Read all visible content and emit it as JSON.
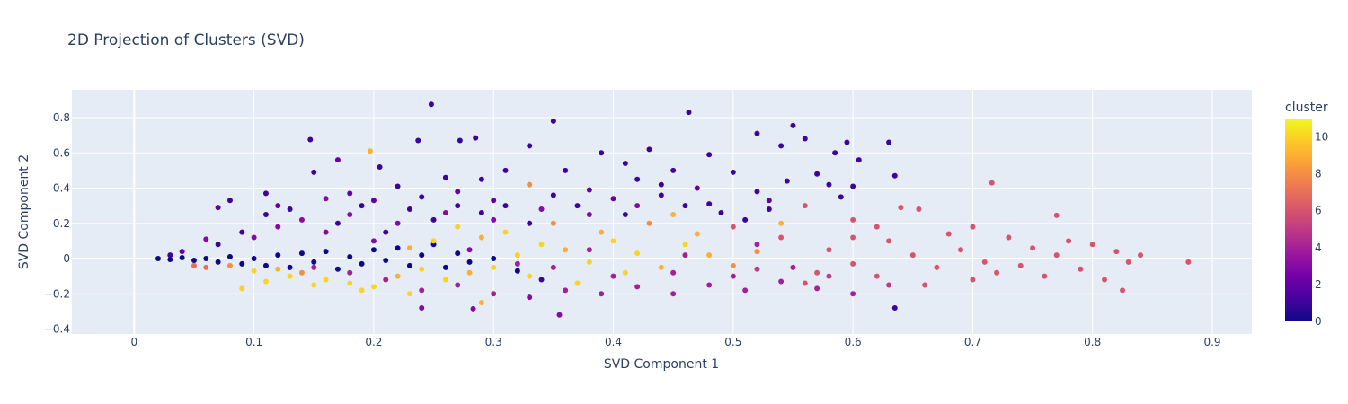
{
  "chart_data": {
    "type": "scatter",
    "title": "2D Projection of Clusters (SVD)",
    "xlabel": "SVD Component 1",
    "ylabel": "SVD Component 2",
    "xlim": [
      -0.052,
      0.933
    ],
    "ylim": [
      -0.428,
      0.958
    ],
    "xticks": [
      "0",
      "0.1",
      "0.2",
      "0.3",
      "0.4",
      "0.5",
      "0.6",
      "0.7",
      "0.8",
      "0.9"
    ],
    "xtick_values": [
      0,
      0.1,
      0.2,
      0.3,
      0.4,
      0.5,
      0.6,
      0.7,
      0.8,
      0.9
    ],
    "yticks": [
      "−0.4",
      "−0.2",
      "0",
      "0.2",
      "0.4",
      "0.6",
      "0.8"
    ],
    "ytick_values": [
      -0.4,
      -0.2,
      0,
      0.2,
      0.4,
      0.6,
      0.8
    ],
    "grid": true,
    "plot_bgcolor": "#e5ecf6",
    "colorbar": {
      "title": "cluster",
      "range": [
        0,
        11
      ],
      "ticks": [
        "0",
        "2",
        "4",
        "6",
        "8",
        "10"
      ],
      "tick_values": [
        0,
        2,
        4,
        6,
        8,
        10
      ],
      "colorscale": "Plasma",
      "colors": [
        "#0d0887",
        "#46039f",
        "#7201a8",
        "#9c179e",
        "#bd3786",
        "#d8576b",
        "#ed7953",
        "#fb9f3a",
        "#fdca26",
        "#f0f921"
      ]
    },
    "points_columns": [
      "svd1",
      "svd2",
      "cluster"
    ],
    "points": [
      [
        0.248,
        0.875,
        1
      ],
      [
        0.35,
        0.78,
        1
      ],
      [
        0.463,
        0.83,
        1
      ],
      [
        0.55,
        0.755,
        1
      ],
      [
        0.52,
        0.71,
        1
      ],
      [
        0.147,
        0.675,
        1
      ],
      [
        0.237,
        0.67,
        1
      ],
      [
        0.272,
        0.67,
        1
      ],
      [
        0.285,
        0.685,
        1
      ],
      [
        0.197,
        0.61,
        9
      ],
      [
        0.63,
        0.66,
        1
      ],
      [
        0.595,
        0.66,
        1
      ],
      [
        0.605,
        0.56,
        1
      ],
      [
        0.635,
        0.47,
        1
      ],
      [
        0.716,
        0.43,
        6
      ],
      [
        0.77,
        0.245,
        6
      ],
      [
        0.88,
        -0.02,
        6
      ],
      [
        0.825,
        -0.18,
        6
      ],
      [
        0.635,
        -0.28,
        1
      ],
      [
        0.355,
        -0.32,
        3
      ],
      [
        0.24,
        -0.28,
        3
      ],
      [
        0.283,
        -0.285,
        3
      ],
      [
        0.43,
        0.62,
        1
      ],
      [
        0.39,
        0.6,
        1
      ],
      [
        0.48,
        0.59,
        1
      ],
      [
        0.54,
        0.64,
        1
      ],
      [
        0.56,
        0.68,
        1
      ],
      [
        0.585,
        0.6,
        1
      ],
      [
        0.33,
        0.64,
        1
      ],
      [
        0.31,
        0.5,
        1
      ],
      [
        0.15,
        0.49,
        1
      ],
      [
        0.17,
        0.56,
        2
      ],
      [
        0.205,
        0.52,
        1
      ],
      [
        0.26,
        0.46,
        1
      ],
      [
        0.29,
        0.45,
        1
      ],
      [
        0.36,
        0.5,
        1
      ],
      [
        0.41,
        0.54,
        1
      ],
      [
        0.45,
        0.5,
        1
      ],
      [
        0.5,
        0.49,
        1
      ],
      [
        0.57,
        0.48,
        1
      ],
      [
        0.58,
        0.42,
        1
      ],
      [
        0.6,
        0.41,
        1
      ],
      [
        0.545,
        0.44,
        1
      ],
      [
        0.52,
        0.38,
        1
      ],
      [
        0.47,
        0.4,
        2
      ],
      [
        0.42,
        0.45,
        1
      ],
      [
        0.38,
        0.39,
        2
      ],
      [
        0.33,
        0.42,
        8
      ],
      [
        0.27,
        0.38,
        2
      ],
      [
        0.22,
        0.41,
        1
      ],
      [
        0.18,
        0.37,
        2
      ],
      [
        0.11,
        0.37,
        1
      ],
      [
        0.08,
        0.33,
        1
      ],
      [
        0.07,
        0.29,
        2
      ],
      [
        0.12,
        0.3,
        2
      ],
      [
        0.16,
        0.34,
        3
      ],
      [
        0.2,
        0.33,
        2
      ],
      [
        0.24,
        0.35,
        1
      ],
      [
        0.3,
        0.33,
        2
      ],
      [
        0.35,
        0.36,
        1
      ],
      [
        0.4,
        0.34,
        2
      ],
      [
        0.44,
        0.36,
        1
      ],
      [
        0.48,
        0.31,
        1
      ],
      [
        0.53,
        0.33,
        2
      ],
      [
        0.56,
        0.3,
        6
      ],
      [
        0.6,
        0.22,
        6
      ],
      [
        0.62,
        0.18,
        6
      ],
      [
        0.64,
        0.29,
        6
      ],
      [
        0.655,
        0.28,
        6
      ],
      [
        0.68,
        0.14,
        6
      ],
      [
        0.7,
        0.18,
        6
      ],
      [
        0.73,
        0.12,
        6
      ],
      [
        0.75,
        0.06,
        6
      ],
      [
        0.78,
        0.1,
        6
      ],
      [
        0.8,
        0.08,
        6
      ],
      [
        0.82,
        0.04,
        6
      ],
      [
        0.84,
        0.02,
        6
      ],
      [
        0.79,
        -0.06,
        6
      ],
      [
        0.76,
        -0.1,
        6
      ],
      [
        0.72,
        -0.08,
        6
      ],
      [
        0.7,
        -0.12,
        6
      ],
      [
        0.67,
        -0.05,
        6
      ],
      [
        0.65,
        0.02,
        6
      ],
      [
        0.62,
        -0.1,
        6
      ],
      [
        0.6,
        -0.03,
        6
      ],
      [
        0.58,
        0.05,
        6
      ],
      [
        0.56,
        -0.14,
        6
      ],
      [
        0.54,
        0.12,
        6
      ],
      [
        0.52,
        -0.06,
        5
      ],
      [
        0.5,
        0.18,
        6
      ],
      [
        0.83,
        -0.02,
        6
      ],
      [
        0.81,
        -0.12,
        6
      ],
      [
        0.74,
        -0.04,
        6
      ],
      [
        0.69,
        0.05,
        6
      ],
      [
        0.66,
        -0.15,
        6
      ],
      [
        0.63,
        0.1,
        6
      ],
      [
        0.71,
        -0.02,
        6
      ],
      [
        0.77,
        0.02,
        6
      ],
      [
        0.6,
        0.12,
        6
      ],
      [
        0.57,
        -0.08,
        6
      ],
      [
        0.02,
        0.0,
        0
      ],
      [
        0.03,
        -0.005,
        0
      ],
      [
        0.04,
        0.005,
        0
      ],
      [
        0.05,
        -0.01,
        0
      ],
      [
        0.06,
        0.0,
        0
      ],
      [
        0.07,
        -0.02,
        0
      ],
      [
        0.08,
        0.01,
        0
      ],
      [
        0.09,
        -0.03,
        0
      ],
      [
        0.1,
        0.0,
        0
      ],
      [
        0.11,
        -0.04,
        0
      ],
      [
        0.12,
        0.02,
        0
      ],
      [
        0.13,
        -0.05,
        0
      ],
      [
        0.14,
        0.03,
        0
      ],
      [
        0.15,
        -0.02,
        0
      ],
      [
        0.16,
        0.04,
        0
      ],
      [
        0.17,
        -0.06,
        0
      ],
      [
        0.18,
        0.01,
        0
      ],
      [
        0.19,
        -0.03,
        0
      ],
      [
        0.2,
        0.05,
        0
      ],
      [
        0.21,
        -0.01,
        0
      ],
      [
        0.22,
        0.06,
        0
      ],
      [
        0.23,
        -0.04,
        0
      ],
      [
        0.24,
        0.02,
        0
      ],
      [
        0.25,
        0.08,
        0
      ],
      [
        0.26,
        -0.05,
        0
      ],
      [
        0.27,
        0.03,
        0
      ],
      [
        0.28,
        -0.02,
        0
      ],
      [
        0.3,
        0.0,
        0
      ],
      [
        0.32,
        -0.07,
        0
      ],
      [
        0.34,
        -0.12,
        1
      ],
      [
        0.05,
        -0.04,
        7
      ],
      [
        0.06,
        -0.05,
        7
      ],
      [
        0.08,
        -0.04,
        8
      ],
      [
        0.1,
        -0.07,
        10
      ],
      [
        0.12,
        -0.06,
        9
      ],
      [
        0.13,
        -0.1,
        10
      ],
      [
        0.14,
        -0.08,
        8
      ],
      [
        0.16,
        -0.12,
        10
      ],
      [
        0.18,
        -0.14,
        10
      ],
      [
        0.2,
        -0.16,
        10
      ],
      [
        0.22,
        -0.1,
        9
      ],
      [
        0.24,
        -0.06,
        10
      ],
      [
        0.26,
        -0.12,
        10
      ],
      [
        0.28,
        -0.08,
        9
      ],
      [
        0.3,
        -0.05,
        10
      ],
      [
        0.32,
        0.02,
        10
      ],
      [
        0.34,
        0.08,
        10
      ],
      [
        0.36,
        0.05,
        9
      ],
      [
        0.38,
        -0.02,
        10
      ],
      [
        0.4,
        0.1,
        10
      ],
      [
        0.42,
        0.03,
        10
      ],
      [
        0.44,
        -0.05,
        9
      ],
      [
        0.46,
        0.08,
        10
      ],
      [
        0.48,
        0.02,
        9
      ],
      [
        0.5,
        -0.04,
        8
      ],
      [
        0.52,
        0.04,
        8
      ],
      [
        0.54,
        0.2,
        9
      ],
      [
        0.31,
        0.15,
        10
      ],
      [
        0.29,
        0.12,
        9
      ],
      [
        0.27,
        0.18,
        10
      ],
      [
        0.25,
        0.1,
        10
      ],
      [
        0.23,
        0.06,
        9
      ],
      [
        0.35,
        0.2,
        8
      ],
      [
        0.39,
        0.15,
        9
      ],
      [
        0.43,
        0.2,
        8
      ],
      [
        0.47,
        0.14,
        9
      ],
      [
        0.45,
        0.25,
        9
      ],
      [
        0.33,
        -0.1,
        10
      ],
      [
        0.37,
        -0.14,
        10
      ],
      [
        0.41,
        -0.08,
        10
      ],
      [
        0.15,
        -0.05,
        4
      ],
      [
        0.18,
        -0.08,
        4
      ],
      [
        0.21,
        -0.12,
        4
      ],
      [
        0.24,
        -0.18,
        4
      ],
      [
        0.27,
        -0.15,
        4
      ],
      [
        0.3,
        -0.2,
        4
      ],
      [
        0.33,
        -0.22,
        3
      ],
      [
        0.36,
        -0.18,
        4
      ],
      [
        0.39,
        -0.2,
        4
      ],
      [
        0.42,
        -0.16,
        4
      ],
      [
        0.45,
        -0.2,
        4
      ],
      [
        0.48,
        -0.15,
        4
      ],
      [
        0.51,
        -0.18,
        4
      ],
      [
        0.54,
        -0.13,
        4
      ],
      [
        0.57,
        -0.17,
        4
      ],
      [
        0.6,
        -0.2,
        4
      ],
      [
        0.63,
        -0.15,
        5
      ],
      [
        0.35,
        -0.05,
        4
      ],
      [
        0.4,
        -0.1,
        4
      ],
      [
        0.45,
        -0.08,
        4
      ],
      [
        0.5,
        -0.1,
        4
      ],
      [
        0.55,
        -0.05,
        4
      ],
      [
        0.58,
        -0.1,
        5
      ],
      [
        0.52,
        0.08,
        4
      ],
      [
        0.46,
        0.02,
        4
      ],
      [
        0.38,
        0.05,
        4
      ],
      [
        0.32,
        -0.03,
        4
      ],
      [
        0.28,
        0.05,
        3
      ],
      [
        0.2,
        0.1,
        3
      ],
      [
        0.16,
        0.15,
        3
      ],
      [
        0.12,
        0.18,
        3
      ],
      [
        0.1,
        0.12,
        3
      ],
      [
        0.14,
        0.22,
        3
      ],
      [
        0.18,
        0.25,
        3
      ],
      [
        0.22,
        0.2,
        3
      ],
      [
        0.26,
        0.26,
        3
      ],
      [
        0.3,
        0.22,
        3
      ],
      [
        0.34,
        0.28,
        3
      ],
      [
        0.38,
        0.25,
        3
      ],
      [
        0.42,
        0.3,
        3
      ],
      [
        0.09,
        0.15,
        1
      ],
      [
        0.11,
        0.25,
        1
      ],
      [
        0.13,
        0.28,
        1
      ],
      [
        0.17,
        0.2,
        1
      ],
      [
        0.19,
        0.3,
        1
      ],
      [
        0.21,
        0.15,
        1
      ],
      [
        0.23,
        0.28,
        1
      ],
      [
        0.25,
        0.22,
        1
      ],
      [
        0.27,
        0.3,
        1
      ],
      [
        0.29,
        0.26,
        1
      ],
      [
        0.31,
        0.3,
        1
      ],
      [
        0.33,
        0.2,
        1
      ],
      [
        0.37,
        0.3,
        1
      ],
      [
        0.41,
        0.25,
        1
      ],
      [
        0.44,
        0.42,
        1
      ],
      [
        0.46,
        0.3,
        1
      ],
      [
        0.49,
        0.26,
        1
      ],
      [
        0.51,
        0.22,
        1
      ],
      [
        0.53,
        0.28,
        1
      ],
      [
        0.59,
        0.35,
        1
      ],
      [
        0.03,
        0.02,
        1
      ],
      [
        0.07,
        0.08,
        1
      ],
      [
        0.04,
        0.04,
        2
      ],
      [
        0.06,
        0.11,
        3
      ],
      [
        0.09,
        -0.17,
        10
      ],
      [
        0.11,
        -0.13,
        10
      ],
      [
        0.15,
        -0.15,
        10
      ],
      [
        0.19,
        -0.18,
        10
      ],
      [
        0.23,
        -0.2,
        10
      ],
      [
        0.29,
        -0.25,
        9
      ]
    ]
  }
}
